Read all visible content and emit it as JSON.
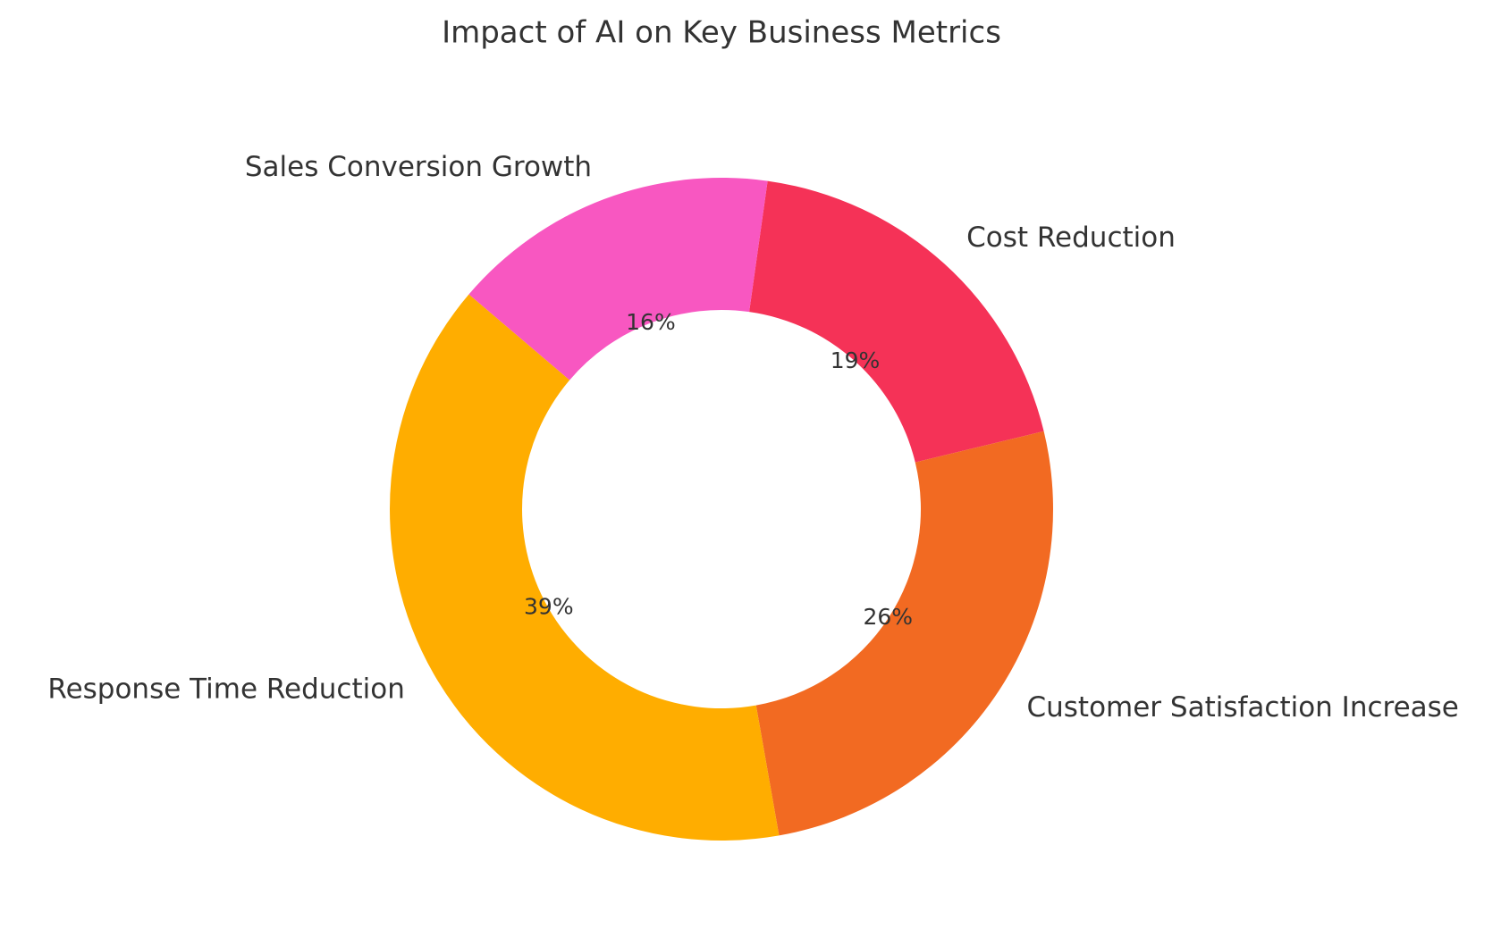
{
  "chart_data": {
    "type": "pie",
    "title": "Impact of AI on Key Business Metrics",
    "categories": [
      "Cost Reduction",
      "Customer Satisfaction Increase",
      "Response Time Reduction",
      "Sales Conversion Growth"
    ],
    "values": [
      19,
      26,
      39,
      16
    ],
    "value_labels": [
      "19%",
      "26%",
      "39%",
      "16%"
    ],
    "colors": [
      "#f53257",
      "#f26a22",
      "#ffad00",
      "#f857c1"
    ]
  }
}
